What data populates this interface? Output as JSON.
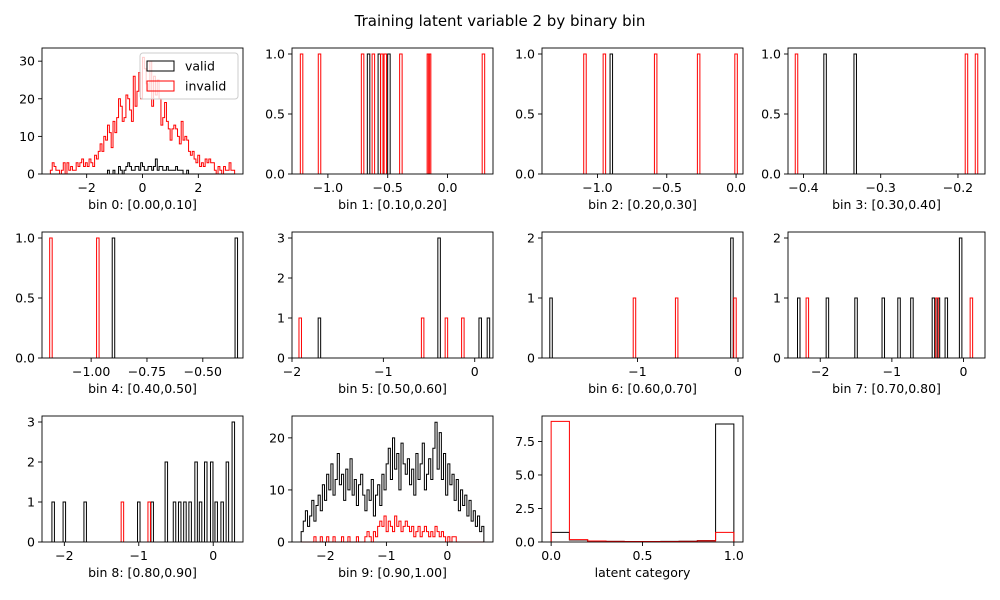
{
  "figure": {
    "suptitle": "Training latent variable 2 by binary bin"
  },
  "colors": {
    "valid": "#000000",
    "invalid": "#ff0000"
  },
  "legend": {
    "entries": [
      "valid",
      "invalid"
    ],
    "placement": "upper-right of first panel"
  },
  "chart_data": [
    {
      "type": "step-histogram",
      "xlabel": "bin 0: [0.00,0.10]",
      "xlim": [
        -3.6,
        3.6
      ],
      "ylim": [
        0,
        33.5
      ],
      "xticks": [
        -2,
        0,
        2
      ],
      "xtick_labels": [
        "−2",
        "0",
        "2"
      ],
      "yticks": [
        0,
        10,
        20,
        30
      ],
      "ytick_labels": [
        "0",
        "10",
        "20",
        "30"
      ],
      "series": [
        {
          "name": "valid",
          "edges_range": [
            -3.3,
            3.3
          ],
          "counts": [
            0,
            0,
            0,
            0,
            0,
            0,
            0,
            0,
            0,
            0,
            0,
            0,
            0,
            0,
            0,
            0,
            0,
            0,
            0,
            0,
            0,
            0,
            0,
            0,
            0,
            0,
            0,
            0,
            0,
            0,
            0,
            1,
            0,
            0,
            1,
            0,
            0,
            2,
            1,
            0,
            1,
            2,
            3,
            2,
            1,
            1,
            2,
            2,
            1,
            3,
            2,
            1,
            1,
            2,
            2,
            1,
            2,
            4,
            1,
            2,
            2,
            1,
            1,
            2,
            1,
            1,
            1,
            1,
            2,
            1,
            1,
            1,
            0,
            0,
            1,
            0,
            0,
            0,
            0,
            0,
            0,
            0,
            0,
            0,
            0,
            0,
            0,
            0,
            0,
            0,
            0,
            0,
            0,
            0,
            0,
            0,
            0,
            0,
            0,
            0
          ]
        },
        {
          "name": "invalid",
          "edges_range": [
            -3.3,
            3.3
          ],
          "counts": [
            1,
            3,
            2,
            1,
            1,
            0,
            1,
            3,
            0,
            3,
            1,
            2,
            1,
            1,
            3,
            2,
            3,
            4,
            2,
            3,
            2,
            4,
            3,
            2,
            5,
            4,
            6,
            8,
            6,
            10,
            9,
            13,
            11,
            7,
            14,
            11,
            15,
            20,
            18,
            14,
            15,
            21,
            20,
            17,
            14,
            26,
            18,
            22,
            27,
            20,
            31,
            28,
            24,
            22,
            30,
            18,
            26,
            21,
            25,
            20,
            13,
            15,
            19,
            14,
            12,
            9,
            12,
            13,
            12,
            10,
            8,
            14,
            9,
            10,
            9,
            6,
            5,
            6,
            4,
            3,
            5,
            2,
            3,
            2,
            4,
            3,
            4,
            3,
            3,
            1,
            0,
            2,
            1,
            0,
            2,
            1,
            1,
            3,
            1,
            1
          ]
        }
      ]
    },
    {
      "type": "step-histogram",
      "xlabel": "bin 1: [0.10,0.20]",
      "xlim": [
        -1.3,
        0.38
      ],
      "ylim": [
        0,
        1.05
      ],
      "xticks": [
        -1.0,
        -0.5,
        0.0
      ],
      "xtick_labels": [
        "−1.0",
        "−0.5",
        "0.0"
      ],
      "yticks": [
        0,
        0.5,
        1.0
      ],
      "ytick_labels": [
        "0.0",
        "0.5",
        "1.0"
      ],
      "series": [
        {
          "name": "valid",
          "spikes": [
            -0.66,
            -0.57,
            -0.49
          ],
          "height": 1
        },
        {
          "name": "invalid",
          "spikes": [
            -1.22,
            -1.07,
            -0.71,
            -0.62,
            -0.55,
            -0.52,
            -0.39,
            -0.16,
            -0.15,
            0.3
          ],
          "height": 1
        }
      ]
    },
    {
      "type": "step-histogram",
      "xlabel": "bin 2: [0.20,0.30]",
      "xlim": [
        -1.4,
        0.05
      ],
      "ylim": [
        0,
        1.05
      ],
      "xticks": [
        -1.0,
        -0.5,
        0.0
      ],
      "xtick_labels": [
        "−1.0",
        "−0.5",
        "0.0"
      ],
      "yticks": [
        0,
        0.5,
        1.0
      ],
      "ytick_labels": [
        "0.0",
        "0.5",
        "1.0"
      ],
      "series": [
        {
          "name": "valid",
          "spikes": [
            -0.9
          ],
          "height": 1
        },
        {
          "name": "invalid",
          "spikes": [
            -1.09,
            -0.95,
            -0.58,
            -0.27,
            0.0
          ],
          "height": 1
        }
      ]
    },
    {
      "type": "step-histogram",
      "xlabel": "bin 3: [0.30,0.40]",
      "xlim": [
        -0.42,
        -0.165
      ],
      "ylim": [
        0,
        1.05
      ],
      "xticks": [
        -0.4,
        -0.3,
        -0.2
      ],
      "xtick_labels": [
        "−0.4",
        "−0.3",
        "−0.2"
      ],
      "yticks": [
        0,
        0.5,
        1.0
      ],
      "ytick_labels": [
        "0.0",
        "0.5",
        "1.0"
      ],
      "series": [
        {
          "name": "valid",
          "spikes": [
            -0.372,
            -0.333
          ],
          "height": 1
        },
        {
          "name": "invalid",
          "spikes": [
            -0.409,
            -0.189,
            -0.176
          ],
          "height": 1
        }
      ]
    },
    {
      "type": "step-histogram",
      "xlabel": "bin 4: [0.40,0.50]",
      "xlim": [
        -1.22,
        -0.32
      ],
      "ylim": [
        0,
        1.05
      ],
      "xticks": [
        -1.0,
        -0.75,
        -0.5
      ],
      "xtick_labels": [
        "−1.00",
        "−0.75",
        "−0.50"
      ],
      "yticks": [
        0,
        0.5,
        1.0
      ],
      "ytick_labels": [
        "0.0",
        "0.5",
        "1.0"
      ],
      "series": [
        {
          "name": "valid",
          "spikes": [
            -0.9,
            -0.35
          ],
          "height": 1
        },
        {
          "name": "invalid",
          "spikes": [
            -1.18,
            -0.97
          ],
          "height": 1
        }
      ]
    },
    {
      "type": "step-histogram",
      "xlabel": "bin 5: [0.50,0.60]",
      "xlim": [
        -2.0,
        0.2
      ],
      "ylim": [
        0,
        3.15
      ],
      "xticks": [
        -2,
        -1,
        0
      ],
      "xtick_labels": [
        "−2",
        "−1",
        "0"
      ],
      "yticks": [
        0,
        1,
        2,
        3
      ],
      "ytick_labels": [
        "0",
        "1",
        "2",
        "3"
      ],
      "series": [
        {
          "name": "valid",
          "spikes": [
            {
              "x": -1.7,
              "h": 1
            },
            {
              "x": -0.39,
              "h": 3
            },
            {
              "x": 0.06,
              "h": 1
            },
            {
              "x": 0.15,
              "h": 1
            }
          ]
        },
        {
          "name": "invalid",
          "spikes": [
            {
              "x": -1.91,
              "h": 1
            },
            {
              "x": -0.57,
              "h": 1
            },
            {
              "x": -0.31,
              "h": 1
            },
            {
              "x": -0.13,
              "h": 1
            }
          ]
        }
      ]
    },
    {
      "type": "step-histogram",
      "xlabel": "bin 6: [0.60,0.70]",
      "xlim": [
        -1.95,
        0.05
      ],
      "ylim": [
        0,
        2.1
      ],
      "xticks": [
        -1,
        0
      ],
      "xtick_labels": [
        "−1",
        "0"
      ],
      "yticks": [
        0,
        1,
        2
      ],
      "ytick_labels": [
        "0",
        "1",
        "2"
      ],
      "series": [
        {
          "name": "valid",
          "spikes": [
            {
              "x": -1.86,
              "h": 1
            },
            {
              "x": -0.06,
              "h": 2
            }
          ]
        },
        {
          "name": "invalid",
          "spikes": [
            {
              "x": -1.03,
              "h": 1
            },
            {
              "x": -0.61,
              "h": 1
            },
            {
              "x": -0.03,
              "h": 1
            }
          ]
        }
      ]
    },
    {
      "type": "step-histogram",
      "xlabel": "bin 7: [0.70,0.80]",
      "xlim": [
        -2.45,
        0.3
      ],
      "ylim": [
        0,
        2.1
      ],
      "xticks": [
        -2,
        -1,
        0
      ],
      "xtick_labels": [
        "−2",
        "−1",
        "0"
      ],
      "yticks": [
        0,
        1,
        2
      ],
      "ytick_labels": [
        "0",
        "1",
        "2"
      ],
      "series": [
        {
          "name": "valid",
          "spikes": [
            {
              "x": -2.3,
              "h": 1
            },
            {
              "x": -1.9,
              "h": 1
            },
            {
              "x": -1.5,
              "h": 1
            },
            {
              "x": -1.12,
              "h": 1
            },
            {
              "x": -0.9,
              "h": 1
            },
            {
              "x": -0.72,
              "h": 1
            },
            {
              "x": -0.42,
              "h": 1
            },
            {
              "x": -0.35,
              "h": 1
            },
            {
              "x": -0.24,
              "h": 1
            },
            {
              "x": -0.04,
              "h": 2
            }
          ]
        },
        {
          "name": "invalid",
          "spikes": [
            {
              "x": -2.18,
              "h": 1
            },
            {
              "x": -0.37,
              "h": 1
            },
            {
              "x": 0.11,
              "h": 1
            }
          ]
        }
      ]
    },
    {
      "type": "step-histogram",
      "xlabel": "bin 8: [0.80,0.90]",
      "xlim": [
        -2.3,
        0.4
      ],
      "ylim": [
        0,
        3.15
      ],
      "xticks": [
        -2,
        -1,
        0
      ],
      "xtick_labels": [
        "−2",
        "−1",
        "0"
      ],
      "yticks": [
        0,
        1,
        2,
        3
      ],
      "ytick_labels": [
        "0",
        "1",
        "2",
        "3"
      ],
      "series": [
        {
          "name": "valid",
          "spikes": [
            {
              "x": -2.15,
              "h": 1
            },
            {
              "x": -2.0,
              "h": 1
            },
            {
              "x": -1.72,
              "h": 1
            },
            {
              "x": -1.0,
              "h": 1
            },
            {
              "x": -0.82,
              "h": 1
            },
            {
              "x": -0.63,
              "h": 2
            },
            {
              "x": -0.52,
              "h": 1
            },
            {
              "x": -0.45,
              "h": 1
            },
            {
              "x": -0.38,
              "h": 1
            },
            {
              "x": -0.31,
              "h": 1
            },
            {
              "x": -0.23,
              "h": 2
            },
            {
              "x": -0.17,
              "h": 1
            },
            {
              "x": -0.1,
              "h": 2
            },
            {
              "x": -0.02,
              "h": 2
            },
            {
              "x": 0.04,
              "h": 1
            },
            {
              "x": 0.12,
              "h": 1
            },
            {
              "x": 0.19,
              "h": 2
            },
            {
              "x": 0.27,
              "h": 3
            }
          ]
        },
        {
          "name": "invalid",
          "spikes": [
            {
              "x": -1.22,
              "h": 1
            },
            {
              "x": -0.86,
              "h": 1
            }
          ]
        }
      ]
    },
    {
      "type": "step-histogram",
      "xlabel": "bin 9: [0.90,1.00]",
      "xlim": [
        -2.55,
        0.75
      ],
      "ylim": [
        0,
        24.2
      ],
      "xticks": [
        -2,
        -1,
        0
      ],
      "xtick_labels": [
        "−2",
        "−1",
        "0"
      ],
      "yticks": [
        0,
        10,
        20
      ],
      "ytick_labels": [
        "0",
        "10",
        "20"
      ],
      "series": [
        {
          "name": "valid",
          "edges_range": [
            -2.4,
            0.6
          ],
          "counts": [
            2,
            4,
            6,
            3,
            5,
            8,
            4,
            7,
            9,
            6,
            11,
            8,
            13,
            10,
            15,
            9,
            12,
            17,
            11,
            13,
            8,
            14,
            10,
            16,
            9,
            12,
            7,
            11,
            13,
            9,
            6,
            10,
            8,
            12,
            5,
            9,
            11,
            7,
            13,
            10,
            15,
            18,
            12,
            20,
            14,
            17,
            10,
            19,
            15,
            13,
            16,
            11,
            14,
            9,
            17,
            12,
            15,
            19,
            10,
            13,
            16,
            12,
            18,
            23,
            14,
            21,
            12,
            17,
            9,
            15,
            11,
            13,
            8,
            12,
            6,
            10,
            7,
            9,
            5,
            8,
            4,
            6,
            3,
            5,
            2,
            3
          ]
        },
        {
          "name": "invalid",
          "edges_range": [
            -2.4,
            0.6
          ],
          "counts": [
            0,
            0,
            0,
            0,
            0,
            0,
            1,
            0,
            0,
            1,
            0,
            0,
            1,
            0,
            0,
            1,
            0,
            0,
            0,
            1,
            0,
            0,
            1,
            0,
            0,
            0,
            1,
            0,
            0,
            0,
            1,
            2,
            1,
            0,
            2,
            1,
            3,
            4,
            3,
            5,
            2,
            4,
            3,
            2,
            5,
            3,
            4,
            2,
            3,
            4,
            3,
            2,
            3,
            1,
            2,
            3,
            1,
            2,
            3,
            2,
            1,
            2,
            1,
            3,
            2,
            1,
            2,
            1,
            0,
            1,
            0,
            1,
            1,
            0,
            0,
            0,
            0,
            0,
            0,
            0,
            0,
            0,
            0,
            0,
            0,
            0
          ]
        }
      ]
    },
    {
      "type": "step-histogram",
      "xlabel": "latent category",
      "xlim": [
        -0.05,
        1.05
      ],
      "ylim": [
        0,
        9.4
      ],
      "xticks": [
        0.0,
        0.5,
        1.0
      ],
      "xtick_labels": [
        "0.0",
        "0.5",
        "1.0"
      ],
      "yticks": [
        0,
        2.5,
        5.0,
        7.5
      ],
      "ytick_labels": [
        "0.0",
        "2.5",
        "5.0",
        "7.5"
      ],
      "series": [
        {
          "name": "valid",
          "edges_range": [
            0.0,
            1.0
          ],
          "counts": [
            0.72,
            0.15,
            0.07,
            0.05,
            0.04,
            0.04,
            0.05,
            0.06,
            0.1,
            8.8
          ]
        },
        {
          "name": "invalid",
          "edges_range": [
            0.0,
            1.0
          ],
          "counts": [
            9.0,
            0.18,
            0.07,
            0.05,
            0.04,
            0.04,
            0.04,
            0.05,
            0.08,
            0.72
          ]
        }
      ]
    }
  ]
}
